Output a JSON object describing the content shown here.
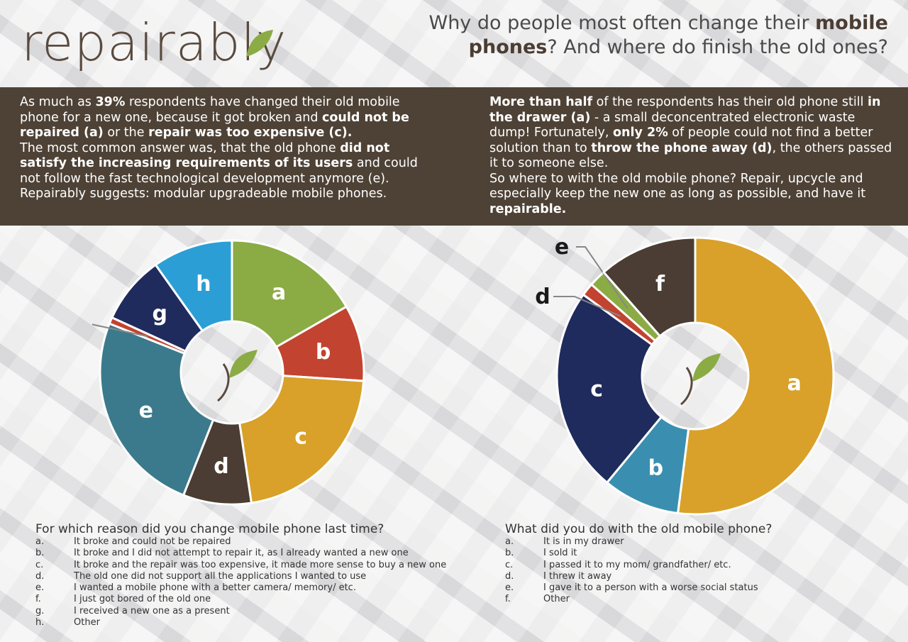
{
  "brand": {
    "name": "repairably"
  },
  "headline": {
    "part1": "Why do people most often change their ",
    "bold1": "mobile phones",
    "part2": "? And where do finish the old ones?"
  },
  "left_text": {
    "p1_a": "As much as ",
    "p1_b": "39%",
    "p1_c": " respondents have changed their old mobile phone for a new one, because it got broken and ",
    "p1_d": "could not be repaired (a)",
    "p1_e": " or the ",
    "p1_f": "repair was too expensive (c).",
    "p2_a": "The most common answer was, that the old phone ",
    "p2_b": "did not satisfy the increasing requirements of its users",
    "p2_c": " and could not follow the fast technological development anymore (e).",
    "p3": "Repairably suggests: modular upgradeable mobile phones."
  },
  "right_text": {
    "p1_a": "More than half",
    "p1_b": " of the respondents has their old phone still ",
    "p1_c": "in the drawer (a)",
    "p1_d": " - a small deconcentrated electronic waste dump! Fortunately, ",
    "p1_e": "only 2%",
    "p1_f": " of people could not find a better solution than to ",
    "p1_g": "throw the phone away (d)",
    "p1_h": ", the others passed it to someone else.",
    "p2_a": "So where to with the old mobile phone? Repair, upcycle and especially keep the new one as long as possible, and have it ",
    "p2_b": "repairable."
  },
  "colors": {
    "green": "#8bab44",
    "red": "#c2432f",
    "yellow": "#d9a12a",
    "brown": "#4b3d33",
    "teal": "#3b7a8c",
    "navy": "#1f2b5c",
    "blue": "#2c9ed6",
    "lightblue": "#3a8fb0"
  },
  "chart_data": [
    {
      "type": "pie",
      "title": "For which reason did you change mobile phone last time?",
      "categories": [
        "a",
        "b",
        "c",
        "d",
        "e",
        "f",
        "g",
        "h"
      ],
      "values": [
        17,
        9.5,
        22,
        8.5,
        25.5,
        0.8,
        8.5,
        10
      ],
      "colors": [
        "#8bab44",
        "#c2432f",
        "#d9a12a",
        "#4b3d33",
        "#3b7a8c",
        "#c2432f",
        "#1f2b5c",
        "#2c9ed6"
      ],
      "legend": [
        {
          "key": "a.",
          "text": "It broke and could not be repaired"
        },
        {
          "key": "b.",
          "text": "It broke and I did not attempt to repair it, as I already wanted a new one"
        },
        {
          "key": "c.",
          "text": "It broke and the repair was too expensive, it made more sense to buy a new one"
        },
        {
          "key": "d.",
          "text": "The old one did not support all the applications I wanted to use"
        },
        {
          "key": "e.",
          "text": "I wanted a mobile phone with a better camera/ memory/ etc."
        },
        {
          "key": "f.",
          "text": "I just got bored of the old one"
        },
        {
          "key": "g.",
          "text": "I received a new one as a present"
        },
        {
          "key": "h.",
          "text": "Other"
        }
      ]
    },
    {
      "type": "pie",
      "title": "What did you do with the old mobile phone?",
      "categories": [
        "a",
        "b",
        "c",
        "d",
        "e",
        "f"
      ],
      "values": [
        52,
        9,
        24,
        1.5,
        2,
        11.5
      ],
      "colors": [
        "#d9a12a",
        "#3a8fb0",
        "#1f2b5c",
        "#c2432f",
        "#8bab44",
        "#4b3d33"
      ],
      "legend": [
        {
          "key": "a.",
          "text": "It is in my drawer"
        },
        {
          "key": "b.",
          "text": "I sold it"
        },
        {
          "key": "c.",
          "text": "I passed it to my mom/ grandfather/ etc."
        },
        {
          "key": "d.",
          "text": "I threw it away"
        },
        {
          "key": "e.",
          "text": "I gave it to a person with a worse social status"
        },
        {
          "key": "f.",
          "text": "Other"
        }
      ]
    }
  ]
}
